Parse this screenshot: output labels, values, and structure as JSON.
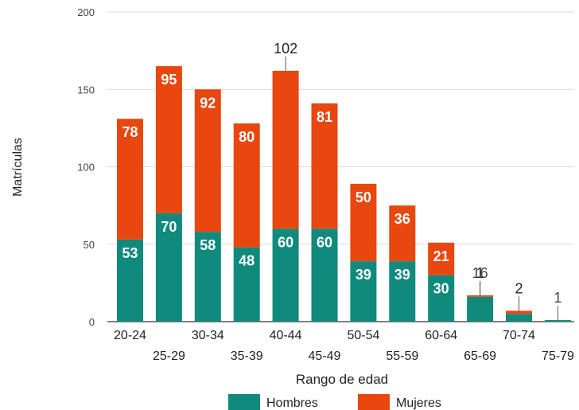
{
  "chart_data": {
    "type": "bar",
    "stacked": true,
    "title": "",
    "xlabel": "Rango de edad",
    "ylabel": "Matrículas",
    "ylim": [
      0,
      200
    ],
    "yticks": [
      0,
      50,
      100,
      150,
      200
    ],
    "grid": true,
    "legend_position": "bottom",
    "categories": [
      "20-24",
      "25-29",
      "30-34",
      "35-39",
      "40-44",
      "45-49",
      "50-54",
      "55-59",
      "60-64",
      "65-69",
      "70-74",
      "75-79"
    ],
    "series": [
      {
        "name": "Hombres",
        "color": "#0f8a7d",
        "values": [
          53,
          70,
          58,
          48,
          60,
          60,
          39,
          39,
          30,
          16,
          5,
          1
        ],
        "labels": [
          "53",
          "70",
          "58",
          "48",
          "60",
          "60",
          "39",
          "39",
          "30",
          "",
          "",
          ""
        ]
      },
      {
        "name": "Mujeres",
        "color": "#e8470f",
        "values": [
          78,
          95,
          92,
          80,
          102,
          81,
          50,
          36,
          21,
          1,
          2,
          0
        ],
        "labels": [
          "78",
          "95",
          "92",
          "80",
          "102",
          "81",
          "50",
          "36",
          "21",
          "1",
          "2",
          ""
        ]
      }
    ],
    "outside_labels": [
      {
        "category_index": 9,
        "text": "16"
      },
      {
        "category_index": 11,
        "text": "1"
      }
    ]
  }
}
